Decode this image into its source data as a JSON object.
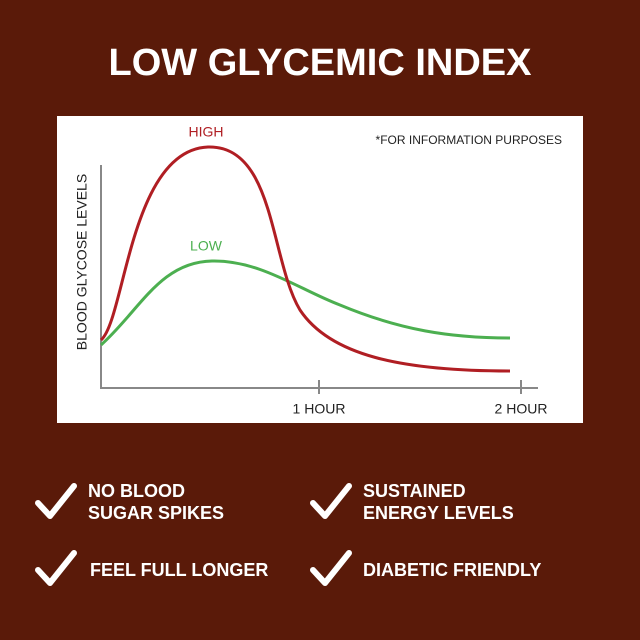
{
  "header": {
    "title": "LOW GLYCEMIC INDEX"
  },
  "chart": {
    "note": "*FOR INFORMATION PURPOSES",
    "y_axis_label": "BLOOD GLYCOSE LEVELS",
    "x_labels": [
      "1 HOUR",
      "2 HOUR"
    ],
    "curves": [
      {
        "label": "HIGH"
      },
      {
        "label": "LOW"
      }
    ]
  },
  "benefits": [
    {
      "lines": [
        "NO BLOOD",
        "SUGAR SPIKES"
      ]
    },
    {
      "lines": [
        "SUSTAINED",
        "ENERGY LEVELS"
      ]
    },
    {
      "lines": [
        "FEEL FULL LONGER"
      ]
    },
    {
      "lines": [
        "DIABETIC FRIENDLY"
      ]
    }
  ]
}
